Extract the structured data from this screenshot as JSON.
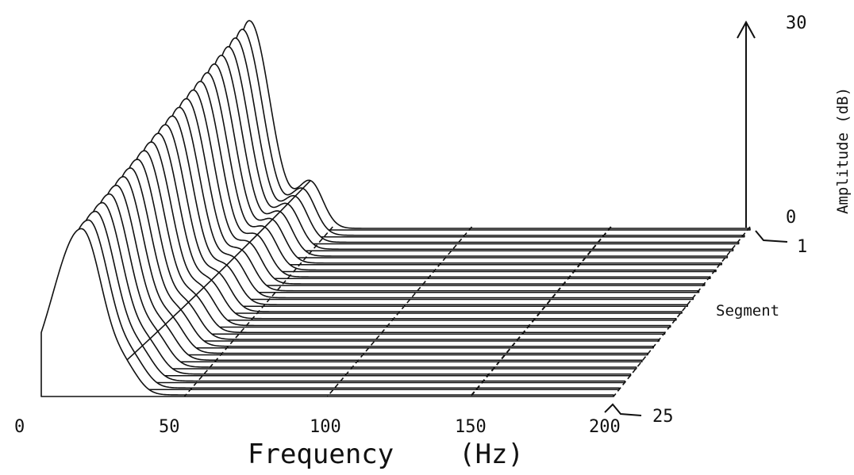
{
  "chart_data": {
    "type": "waterfall-3d",
    "title": "",
    "xlabel": "Frequency    (Hz)",
    "zlabel": "Amplitude  (dB)",
    "ylabel": "Segment",
    "x_ticks": [
      "0",
      "50",
      "100",
      "150",
      "200"
    ],
    "x_range": [
      0,
      200
    ],
    "z_ticks": [
      "0",
      "30"
    ],
    "z_range": [
      0,
      30
    ],
    "segment_labels": [
      "1",
      "25"
    ],
    "segment_count": 25,
    "series_description": "amplitude spectra per segment, dominant peak near 15-20 Hz",
    "first_segment": {
      "peak_frequency_hz": 20,
      "peak_amplitude_db": 30,
      "secondary_peak_hz": 42
    },
    "last_segment": {
      "peak_frequency_hz": 14,
      "peak_amplitude_db": 24
    },
    "grid": "dashed frequency lines at 50, 100, 150, 200 Hz"
  }
}
